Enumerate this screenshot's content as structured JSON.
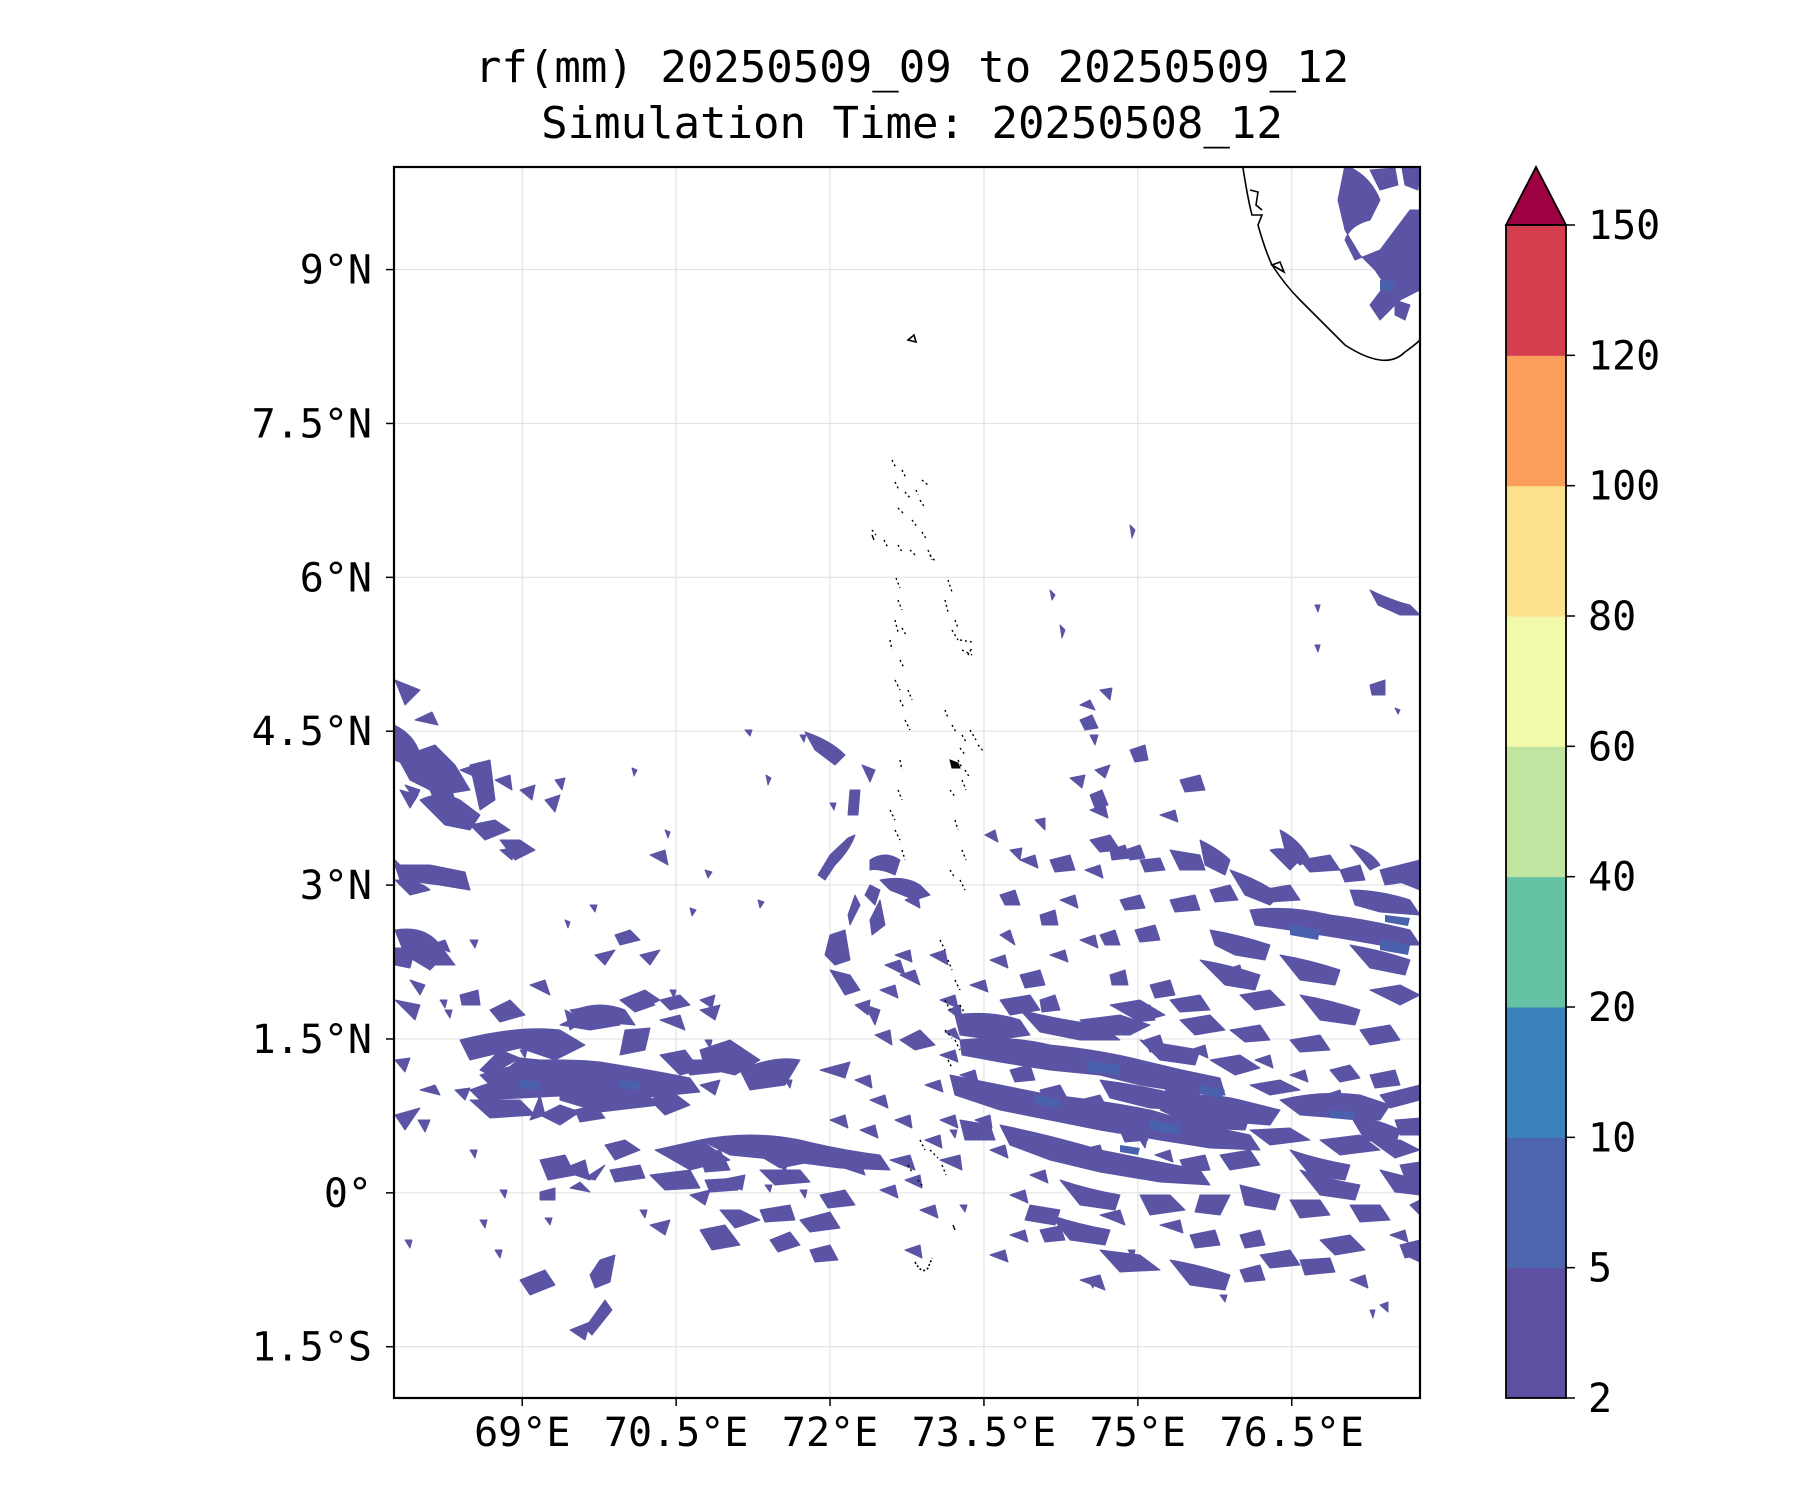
{
  "title_line1": "rf(mm) 20250509_09 to 20250509_12",
  "title_line2": "Simulation Time: 20250508_12",
  "map": {
    "lon_range": [
      67.75,
      77.75
    ],
    "lat_range": [
      -2.0,
      10.0
    ],
    "lon_ticks": [
      {
        "v": 69.0,
        "label": "69°E"
      },
      {
        "v": 70.5,
        "label": "70.5°E"
      },
      {
        "v": 72.0,
        "label": "72°E"
      },
      {
        "v": 73.5,
        "label": "73.5°E"
      },
      {
        "v": 75.0,
        "label": "75°E"
      },
      {
        "v": 76.5,
        "label": "76.5°E"
      }
    ],
    "lat_ticks": [
      {
        "v": 9.0,
        "label": "9°N"
      },
      {
        "v": 7.5,
        "label": "7.5°N"
      },
      {
        "v": 6.0,
        "label": "6°N"
      },
      {
        "v": 4.5,
        "label": "4.5°N"
      },
      {
        "v": 3.0,
        "label": "3°N"
      },
      {
        "v": 1.5,
        "label": "1.5°N"
      },
      {
        "v": 0.0,
        "label": "0°"
      },
      {
        "v": -1.5,
        "label": "1.5°S"
      }
    ],
    "gridlines": true,
    "rain_fill_color": "#5b54a4",
    "rain_core_color": "#4a62ad"
  },
  "colorbar": {
    "levels": [
      "2",
      "5",
      "10",
      "20",
      "40",
      "60",
      "80",
      "100",
      "120",
      "150"
    ],
    "colors": [
      "#5e4fa2",
      "#4c65ad",
      "#3b82bb",
      "#66c2a5",
      "#bfe5a0",
      "#f3f9aa",
      "#fde08b",
      "#fb9e5b",
      "#d53e4f"
    ],
    "extend_color": "#9e0142"
  }
}
